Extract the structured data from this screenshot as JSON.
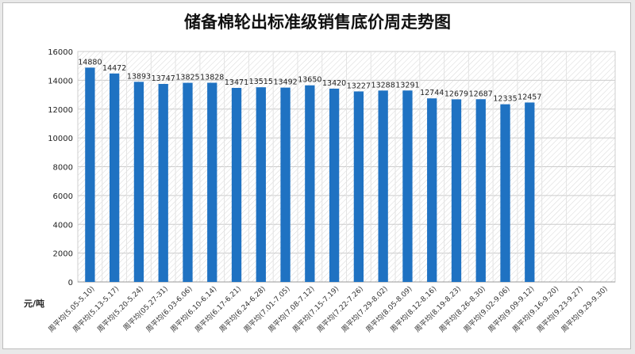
{
  "chart_data": {
    "type": "bar",
    "title": "储备棉轮出标准级销售底价周走势图",
    "ylabel": "元/吨",
    "xlabel": "",
    "ylim": [
      0,
      16000
    ],
    "yticks": [
      0,
      2000,
      4000,
      6000,
      8000,
      10000,
      12000,
      14000,
      16000
    ],
    "grid": true,
    "legend": "none",
    "categories": [
      "周平均(5.05-5.10)",
      "周平均(5.13-5.17)",
      "周平均(5.20-5.24)",
      "周平均(05.27-31)",
      "周平均(6.03-6.06)",
      "周平均(6.10-6.14)",
      "周平均(6.17-6.21)",
      "周平均(6.24-6.28)",
      "周平均(7.01-7.05)",
      "周平均(7.08-7.12)",
      "周平均(7.15-7.19)",
      "周平均(7.22-7.26)",
      "周平均(7.29-8.02)",
      "周平均(8.05-8.09)",
      "周平均(8.12-8.16)",
      "周平均(8.19-8.23)",
      "周平均(8.26-8.30)",
      "周平均(9.02-9.06)",
      "周平均(9.09-9.12)",
      "周平均(9.16-9.20)",
      "周平均(9.23-9.27)",
      "周平均(9.29-9.30)"
    ],
    "values": [
      14880,
      14472,
      13893,
      13747,
      13825,
      13828,
      13471,
      13515,
      13492,
      13650,
      13420,
      13227,
      13288,
      13291,
      12744,
      12679,
      12687,
      12335,
      12457,
      null,
      null,
      null
    ],
    "bar_color": "#1f72c2",
    "plot_area_pattern": "diagonal-hatch"
  }
}
